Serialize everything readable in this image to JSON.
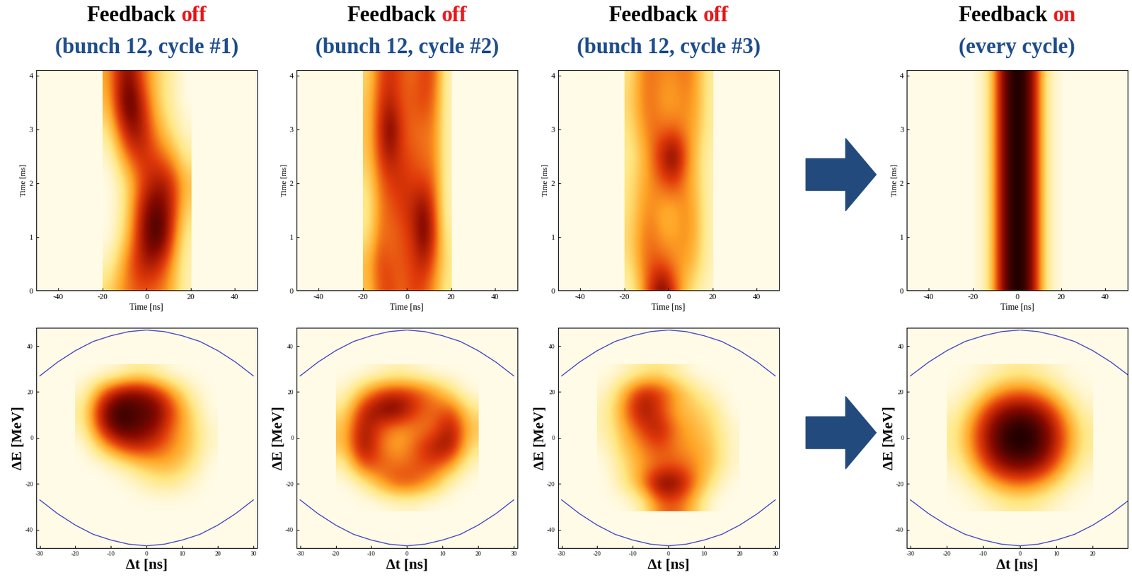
{
  "column_titles": [
    {
      "title": "Feedback",
      "status": "off",
      "subtitle": "(bunch 12, cycle #1)"
    },
    {
      "title": "Feedback",
      "status": "off",
      "subtitle": "(bunch 12, cycle #2)"
    },
    {
      "title": "Feedback",
      "status": "off",
      "subtitle": "(bunch 12, cycle #3)"
    },
    {
      "title": "Feedback",
      "status": "on",
      "subtitle": "(every cycle)"
    }
  ],
  "chart_data": [
    {
      "type": "heatmap",
      "xlabel": "Time [ns]",
      "ylabel": "Time [ms]",
      "xlim": [
        -50,
        50
      ],
      "ylim": [
        0,
        4.1
      ],
      "xticks": [
        -40,
        -20,
        0,
        20,
        40
      ],
      "yticks": [
        0,
        1,
        2,
        3,
        4
      ],
      "x": [
        -17.5,
        -12.5,
        -7.5,
        -2.5,
        2.5,
        7.5,
        12.5,
        17.5
      ],
      "y": [
        0,
        0.5,
        1,
        1.5,
        2,
        2.5,
        3,
        3.5,
        4
      ],
      "cells": [
        [
          0.25,
          0.4,
          0.5,
          0.55,
          0.5,
          0.45,
          0.3,
          0.1
        ],
        [
          0.1,
          0.3,
          0.55,
          0.7,
          0.75,
          0.6,
          0.35,
          0.1
        ],
        [
          0.0,
          0.15,
          0.4,
          0.75,
          0.95,
          0.9,
          0.5,
          0.15
        ],
        [
          0.0,
          0.1,
          0.35,
          0.7,
          0.9,
          0.85,
          0.6,
          0.25
        ],
        [
          0.0,
          0.1,
          0.3,
          0.55,
          0.7,
          0.75,
          0.6,
          0.35
        ],
        [
          0.05,
          0.3,
          0.55,
          0.65,
          0.6,
          0.5,
          0.35,
          0.15
        ],
        [
          0.2,
          0.55,
          0.8,
          0.75,
          0.5,
          0.3,
          0.15,
          0.05
        ],
        [
          0.35,
          0.75,
          0.95,
          0.7,
          0.4,
          0.2,
          0.1,
          0.0
        ],
        [
          0.4,
          0.7,
          0.8,
          0.55,
          0.35,
          0.2,
          0.1,
          0.0
        ]
      ]
    },
    {
      "type": "heatmap",
      "xlabel": "Time [ns]",
      "ylabel": "Time [ms]",
      "xlim": [
        -50,
        50
      ],
      "ylim": [
        0,
        4.1
      ],
      "xticks": [
        -40,
        -20,
        0,
        20,
        40
      ],
      "yticks": [
        0,
        1,
        2,
        3,
        4
      ],
      "x": [
        -17.5,
        -12.5,
        -7.5,
        -2.5,
        2.5,
        7.5,
        12.5,
        17.5
      ],
      "y": [
        0,
        0.5,
        1,
        1.5,
        2,
        2.5,
        3,
        3.5,
        4
      ],
      "cells": [
        [
          0.3,
          0.55,
          0.6,
          0.5,
          0.6,
          0.55,
          0.4,
          0.15
        ],
        [
          0.35,
          0.6,
          0.55,
          0.55,
          0.6,
          0.7,
          0.5,
          0.2
        ],
        [
          0.2,
          0.5,
          0.5,
          0.55,
          0.65,
          0.9,
          0.6,
          0.15
        ],
        [
          0.15,
          0.45,
          0.55,
          0.6,
          0.7,
          0.85,
          0.55,
          0.1
        ],
        [
          0.2,
          0.5,
          0.6,
          0.65,
          0.6,
          0.6,
          0.5,
          0.1
        ],
        [
          0.3,
          0.6,
          0.75,
          0.6,
          0.55,
          0.5,
          0.45,
          0.1
        ],
        [
          0.3,
          0.65,
          0.9,
          0.6,
          0.5,
          0.5,
          0.45,
          0.1
        ],
        [
          0.3,
          0.6,
          0.7,
          0.55,
          0.55,
          0.6,
          0.5,
          0.1
        ],
        [
          0.25,
          0.55,
          0.65,
          0.55,
          0.5,
          0.6,
          0.55,
          0.1
        ]
      ]
    },
    {
      "type": "heatmap",
      "xlabel": "Time [ns]",
      "ylabel": "Time [ms]",
      "xlim": [
        -50,
        50
      ],
      "ylim": [
        0,
        4.1
      ],
      "xticks": [
        -40,
        -20,
        0,
        20,
        40
      ],
      "yticks": [
        0,
        1,
        2,
        3,
        4
      ],
      "x": [
        -17.5,
        -12.5,
        -7.5,
        -2.5,
        2.5,
        7.5,
        12.5,
        17.5
      ],
      "y": [
        0,
        0.5,
        1,
        1.5,
        2,
        2.5,
        3,
        3.5,
        4
      ],
      "cells": [
        [
          0.1,
          0.35,
          0.7,
          0.9,
          0.6,
          0.3,
          0.15,
          0.05
        ],
        [
          0.2,
          0.45,
          0.55,
          0.55,
          0.45,
          0.4,
          0.3,
          0.1
        ],
        [
          0.25,
          0.45,
          0.5,
          0.4,
          0.4,
          0.45,
          0.35,
          0.1
        ],
        [
          0.2,
          0.4,
          0.45,
          0.35,
          0.35,
          0.45,
          0.35,
          0.1
        ],
        [
          0.2,
          0.35,
          0.45,
          0.55,
          0.6,
          0.45,
          0.3,
          0.1
        ],
        [
          0.15,
          0.3,
          0.5,
          0.75,
          0.9,
          0.55,
          0.3,
          0.1
        ],
        [
          0.2,
          0.4,
          0.5,
          0.5,
          0.5,
          0.45,
          0.35,
          0.15
        ],
        [
          0.25,
          0.45,
          0.5,
          0.4,
          0.4,
          0.45,
          0.4,
          0.15
        ],
        [
          0.2,
          0.45,
          0.5,
          0.45,
          0.45,
          0.5,
          0.4,
          0.15
        ]
      ]
    },
    {
      "type": "heatmap",
      "xlabel": "Time [ns]",
      "ylabel": "Time [ms]",
      "xlim": [
        -50,
        50
      ],
      "ylim": [
        0,
        4.1
      ],
      "xticks": [
        -40,
        -20,
        0,
        20,
        40
      ],
      "yticks": [
        0,
        1,
        2,
        3,
        4
      ],
      "x": [
        -17.5,
        -12.5,
        -7.5,
        -2.5,
        2.5,
        7.5,
        12.5,
        17.5
      ],
      "y": [
        0,
        0.5,
        1,
        1.5,
        2,
        2.5,
        3,
        3.5,
        4
      ],
      "cells": [
        [
          0.02,
          0.2,
          0.75,
          1.0,
          1.0,
          0.75,
          0.2,
          0.02
        ],
        [
          0.02,
          0.2,
          0.75,
          1.0,
          1.0,
          0.75,
          0.2,
          0.02
        ],
        [
          0.02,
          0.2,
          0.75,
          1.0,
          1.0,
          0.75,
          0.2,
          0.02
        ],
        [
          0.02,
          0.2,
          0.75,
          1.0,
          1.0,
          0.75,
          0.2,
          0.02
        ],
        [
          0.02,
          0.2,
          0.75,
          1.0,
          1.0,
          0.75,
          0.2,
          0.02
        ],
        [
          0.02,
          0.2,
          0.75,
          1.0,
          1.0,
          0.75,
          0.2,
          0.02
        ],
        [
          0.02,
          0.2,
          0.75,
          1.0,
          1.0,
          0.75,
          0.2,
          0.02
        ],
        [
          0.02,
          0.2,
          0.75,
          1.0,
          1.0,
          0.75,
          0.2,
          0.02
        ],
        [
          0.02,
          0.2,
          0.75,
          1.0,
          1.0,
          0.75,
          0.2,
          0.02
        ]
      ]
    },
    {
      "type": "heatmap",
      "xlabel": "Δt [ns]",
      "ylabel": "ΔE [MeV]",
      "xlim": [
        -31,
        31
      ],
      "ylim": [
        -48,
        48
      ],
      "xticks": [
        -30,
        -20,
        -10,
        0,
        10,
        20,
        30
      ],
      "yticks": [
        -40,
        -20,
        0,
        20,
        40
      ],
      "x": [
        -17.5,
        -12.5,
        -7.5,
        -2.5,
        2.5,
        7.5,
        12.5,
        17.5
      ],
      "y": [
        -28,
        -20,
        -12,
        -4,
        4,
        12,
        20,
        28
      ],
      "cells": [
        [
          0,
          0,
          0,
          0,
          0,
          0,
          0,
          0
        ],
        [
          0,
          0,
          0,
          0.05,
          0.15,
          0.15,
          0.05,
          0
        ],
        [
          0,
          0,
          0.1,
          0.25,
          0.35,
          0.35,
          0.2,
          0
        ],
        [
          0,
          0.3,
          0.6,
          0.7,
          0.6,
          0.45,
          0.3,
          0.05
        ],
        [
          0.1,
          0.7,
          0.95,
          0.9,
          0.8,
          0.5,
          0.3,
          0.05
        ],
        [
          0.15,
          0.8,
          1.0,
          0.9,
          0.9,
          0.6,
          0.25,
          0
        ],
        [
          0.05,
          0.5,
          0.8,
          0.85,
          0.7,
          0.4,
          0.1,
          0
        ],
        [
          0,
          0,
          0.05,
          0.15,
          0.1,
          0,
          0,
          0
        ]
      ],
      "separatrix": {
        "x": [
          -30,
          -25,
          -20,
          -15,
          -10,
          -5,
          0,
          5,
          10,
          15,
          20,
          25,
          30
        ],
        "upper": [
          27,
          33,
          38,
          42,
          44.5,
          46.3,
          47,
          46.3,
          44.5,
          42,
          38,
          33,
          27
        ],
        "lower": [
          -27,
          -33,
          -38,
          -42,
          -44.5,
          -46.3,
          -47,
          -46.3,
          -44.5,
          -42,
          -38,
          -33,
          -27
        ],
        "color": "#3a3ac8"
      }
    },
    {
      "type": "heatmap",
      "xlabel": "Δt [ns]",
      "ylabel": "ΔE [MeV]",
      "xlim": [
        -31,
        31
      ],
      "ylim": [
        -48,
        48
      ],
      "xticks": [
        -30,
        -20,
        -10,
        0,
        10,
        20,
        30
      ],
      "yticks": [
        -40,
        -20,
        0,
        20,
        40
      ],
      "x": [
        -17.5,
        -12.5,
        -7.5,
        -2.5,
        2.5,
        7.5,
        12.5,
        17.5
      ],
      "y": [
        -28,
        -20,
        -12,
        -4,
        4,
        12,
        20,
        28
      ],
      "cells": [
        [
          0,
          0,
          0,
          0.05,
          0.05,
          0,
          0,
          0
        ],
        [
          0,
          0.1,
          0.4,
          0.6,
          0.55,
          0.35,
          0.05,
          0
        ],
        [
          0.1,
          0.6,
          0.55,
          0.5,
          0.55,
          0.6,
          0.4,
          0.05
        ],
        [
          0.3,
          0.85,
          0.5,
          0.35,
          0.55,
          0.75,
          0.8,
          0.2
        ],
        [
          0.3,
          0.8,
          0.55,
          0.4,
          0.45,
          0.5,
          0.8,
          0.3
        ],
        [
          0.2,
          0.7,
          0.85,
          0.9,
          0.6,
          0.5,
          0.6,
          0.2
        ],
        [
          0.05,
          0.35,
          0.6,
          0.65,
          0.6,
          0.45,
          0.2,
          0
        ],
        [
          0,
          0,
          0.05,
          0.1,
          0.05,
          0,
          0,
          0
        ]
      ],
      "separatrix": {
        "x": [
          -30,
          -25,
          -20,
          -15,
          -10,
          -5,
          0,
          5,
          10,
          15,
          20,
          25,
          30
        ],
        "upper": [
          27,
          33,
          38,
          42,
          44.5,
          46.3,
          47,
          46.3,
          44.5,
          42,
          38,
          33,
          27
        ],
        "lower": [
          -27,
          -33,
          -38,
          -42,
          -44.5,
          -46.3,
          -47,
          -46.3,
          -44.5,
          -42,
          -38,
          -33,
          -27
        ],
        "color": "#3a3ac8"
      }
    },
    {
      "type": "heatmap",
      "xlabel": "Δt [ns]",
      "ylabel": "ΔE [MeV]",
      "xlim": [
        -31,
        31
      ],
      "ylim": [
        -48,
        48
      ],
      "xticks": [
        -30,
        -20,
        -10,
        0,
        10,
        20,
        30
      ],
      "yticks": [
        -40,
        -20,
        0,
        20,
        40
      ],
      "x": [
        -17.5,
        -12.5,
        -7.5,
        -2.5,
        2.5,
        7.5,
        12.5,
        17.5
      ],
      "y": [
        -28,
        -20,
        -12,
        -4,
        4,
        12,
        20,
        28
      ],
      "cells": [
        [
          0,
          0,
          0.1,
          0.5,
          0.55,
          0.3,
          0,
          0
        ],
        [
          0,
          0.15,
          0.45,
          0.9,
          0.85,
          0.5,
          0.15,
          0
        ],
        [
          0,
          0.2,
          0.4,
          0.5,
          0.55,
          0.45,
          0.3,
          0.05
        ],
        [
          0.05,
          0.3,
          0.45,
          0.6,
          0.45,
          0.4,
          0.3,
          0.05
        ],
        [
          0.1,
          0.35,
          0.6,
          0.75,
          0.45,
          0.35,
          0.25,
          0.05
        ],
        [
          0.1,
          0.45,
          0.8,
          0.6,
          0.35,
          0.3,
          0.2,
          0
        ],
        [
          0.05,
          0.35,
          0.7,
          0.65,
          0.4,
          0.2,
          0.05,
          0
        ],
        [
          0,
          0.05,
          0.15,
          0.2,
          0.1,
          0,
          0,
          0
        ]
      ],
      "separatrix": {
        "x": [
          -30,
          -25,
          -20,
          -15,
          -10,
          -5,
          0,
          5,
          10,
          15,
          20,
          25,
          30
        ],
        "upper": [
          27,
          33,
          38,
          42,
          44.5,
          46.3,
          47,
          46.3,
          44.5,
          42,
          38,
          33,
          27
        ],
        "lower": [
          -27,
          -33,
          -38,
          -42,
          -44.5,
          -46.3,
          -47,
          -46.3,
          -44.5,
          -42,
          -38,
          -33,
          -27
        ],
        "color": "#3a3ac8"
      }
    },
    {
      "type": "heatmap",
      "xlabel": "Δt [ns]",
      "ylabel": "ΔE [MeV]",
      "xlim": [
        -31,
        29.5
      ],
      "ylim": [
        -48,
        48
      ],
      "xticks": [
        -30,
        -20,
        -10,
        0,
        10,
        20
      ],
      "yticks": [
        -40,
        -20,
        0,
        20,
        40
      ],
      "x": [
        -17.5,
        -12.5,
        -7.5,
        -2.5,
        2.5,
        7.5,
        12.5,
        17.5
      ],
      "y": [
        -28,
        -20,
        -12,
        -4,
        4,
        12,
        20,
        28
      ],
      "cells": [
        [
          0,
          0.02,
          0.08,
          0.15,
          0.15,
          0.08,
          0.02,
          0
        ],
        [
          0.02,
          0.12,
          0.35,
          0.5,
          0.5,
          0.35,
          0.12,
          0.02
        ],
        [
          0.08,
          0.35,
          0.7,
          0.85,
          0.85,
          0.7,
          0.35,
          0.08
        ],
        [
          0.15,
          0.5,
          0.85,
          1.0,
          1.0,
          0.85,
          0.5,
          0.15
        ],
        [
          0.15,
          0.5,
          0.85,
          1.0,
          1.0,
          0.85,
          0.5,
          0.15
        ],
        [
          0.08,
          0.35,
          0.7,
          0.85,
          0.85,
          0.7,
          0.35,
          0.08
        ],
        [
          0.02,
          0.12,
          0.35,
          0.5,
          0.5,
          0.35,
          0.12,
          0.02
        ],
        [
          0,
          0.02,
          0.08,
          0.15,
          0.15,
          0.08,
          0.02,
          0
        ]
      ],
      "separatrix": {
        "x": [
          -30,
          -25,
          -20,
          -15,
          -10,
          -5,
          0,
          5,
          10,
          15,
          20,
          25,
          30
        ],
        "upper": [
          27,
          33,
          38,
          42,
          44.5,
          46.3,
          47,
          46.3,
          44.5,
          42,
          38,
          33,
          27
        ],
        "lower": [
          -27,
          -33,
          -38,
          -42,
          -44.5,
          -46.3,
          -47,
          -46.3,
          -44.5,
          -42,
          -38,
          -33,
          -27
        ],
        "color": "#3a3ac8"
      }
    }
  ]
}
